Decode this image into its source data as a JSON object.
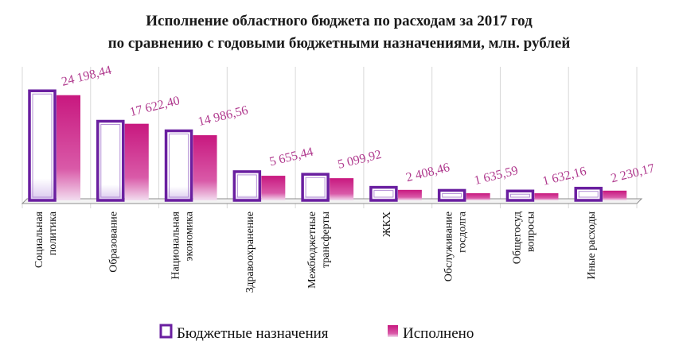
{
  "chart_data": {
    "type": "bar",
    "title": "Исполнение областного бюджета по расходам за 2017 год",
    "subtitle": "по сравнению с годовыми бюджетными назначениями, млн. рублей",
    "categories": [
      [
        "Социальная",
        "политика"
      ],
      [
        "Образование"
      ],
      [
        "Национальная",
        "экономика"
      ],
      [
        "Здравоохранение"
      ],
      [
        "Межбюджетные",
        "трансферты"
      ],
      [
        "ЖКХ"
      ],
      [
        "Обслуживание",
        "госдолга"
      ],
      [
        "Общегосуд",
        "вопросы"
      ],
      [
        "Иные расходы"
      ]
    ],
    "series": [
      {
        "name": "Бюджетные назначения",
        "values": [
          25200,
          18200,
          16000,
          6600,
          6000,
          3000,
          2300,
          2150,
          2800
        ]
      },
      {
        "name": "Исполнено",
        "values": [
          24198.44,
          17622.4,
          14986.56,
          5655.44,
          5099.92,
          2408.46,
          1635.59,
          1632.16,
          2230.17
        ]
      }
    ],
    "data_labels": [
      "24 198,44",
      "17 622,40",
      "14 986,56",
      "5 655,44",
      "5 099,92",
      "2 408,46",
      "1 635,59",
      "1 632,16",
      "2 230,17"
    ],
    "ylim": [
      0,
      30000
    ],
    "grid": "vertical",
    "legend_position": "bottom",
    "colors": {
      "budget_border": "#6a1fa0",
      "budget_fill": "#ffffff",
      "executed_top": "#c8187f",
      "executed_bottom": "#f2dcef",
      "label": "#b03a8e",
      "grid": "#d8d8d8",
      "axis": "#8c8c8c"
    }
  }
}
